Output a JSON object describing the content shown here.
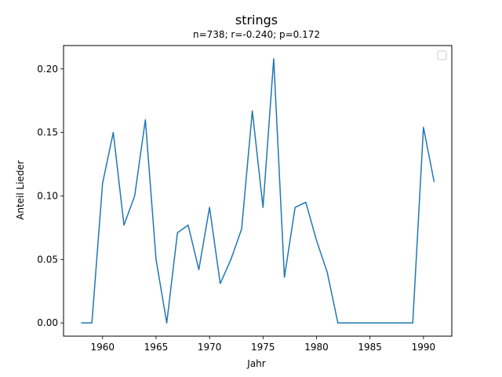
{
  "chart_data": {
    "type": "line",
    "title": "strings",
    "subtitle": "n=738; r=-0.240; p=0.172",
    "xlabel": "Jahr",
    "ylabel": "Anteil Lieder",
    "xlim": [
      1956.35,
      1992.65
    ],
    "ylim": [
      -0.0104,
      0.2184
    ],
    "xticks": [
      1960,
      1965,
      1970,
      1975,
      1980,
      1985,
      1990
    ],
    "yticks": [
      0.0,
      0.05,
      0.1,
      0.15,
      0.2
    ],
    "xtick_labels": [
      "1960",
      "1965",
      "1970",
      "1975",
      "1980",
      "1985",
      "1990"
    ],
    "ytick_labels": [
      "0.00",
      "0.05",
      "0.10",
      "0.15",
      "0.20"
    ],
    "legend": "top-right",
    "series": [
      {
        "color": "#1f77b4",
        "x": [
          1958,
          1959,
          1960,
          1961,
          1962,
          1963,
          1964,
          1965,
          1966,
          1967,
          1968,
          1969,
          1970,
          1971,
          1972,
          1973,
          1974,
          1975,
          1976,
          1977,
          1978,
          1979,
          1980,
          1981,
          1982,
          1983,
          1984,
          1985,
          1986,
          1987,
          1988,
          1989,
          1990,
          1991
        ],
        "y": [
          0.0,
          0.0,
          0.11,
          0.15,
          0.077,
          0.1,
          0.16,
          0.05,
          0.0,
          0.071,
          0.077,
          0.042,
          0.091,
          0.031,
          0.05,
          0.074,
          0.167,
          0.091,
          0.208,
          0.036,
          0.091,
          0.095,
          0.065,
          0.04,
          0.0,
          0.0,
          0.0,
          0.0,
          0.0,
          0.0,
          0.0,
          0.0,
          0.154,
          0.111
        ]
      }
    ]
  }
}
